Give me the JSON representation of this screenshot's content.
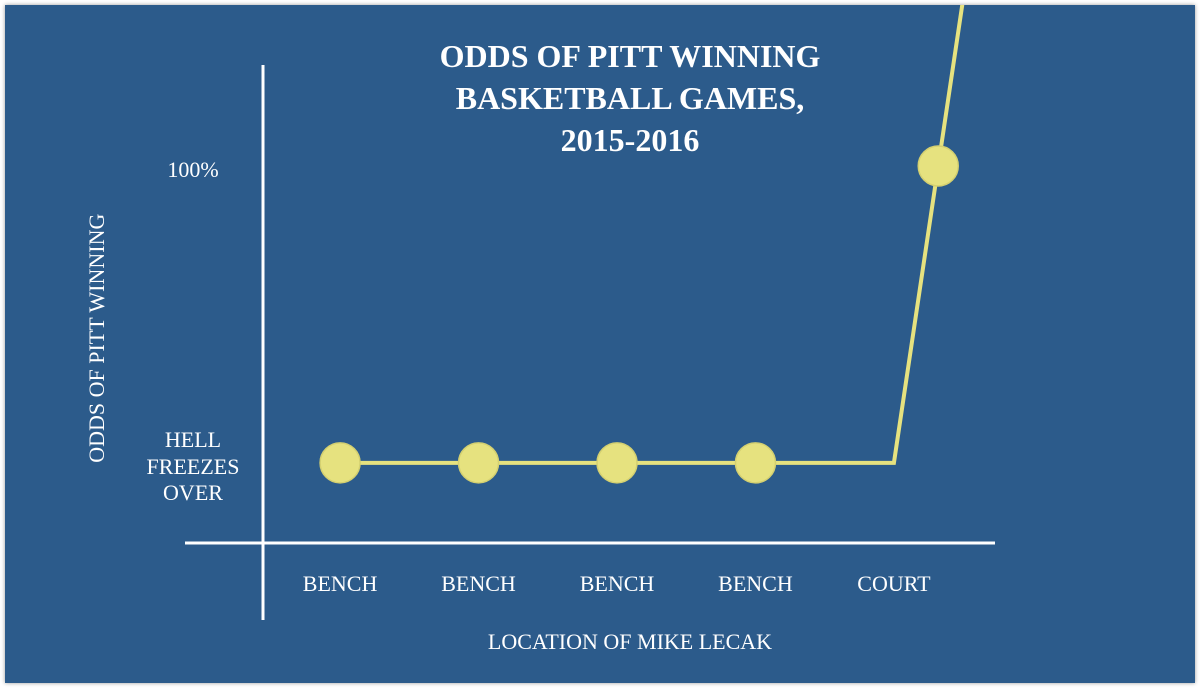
{
  "chart_data": {
    "type": "line",
    "title": "ODDS OF PITT WINNING BASKETBALL GAMES, 2015-2016",
    "x_label": "LOCATION OF MIKE LECAK",
    "y_label": "ODDS OF PITT WINNING",
    "xlim": [
      -1.12,
      4.73
    ],
    "ylim": [
      -27,
      134
    ],
    "xticks": [
      {
        "value": 0,
        "label": "BENCH"
      },
      {
        "value": 1,
        "label": "BENCH"
      },
      {
        "value": 2,
        "label": "BENCH"
      },
      {
        "value": 3,
        "label": "BENCH"
      },
      {
        "value": 4,
        "label": "COURT"
      }
    ],
    "yticks": [
      {
        "value": 0,
        "label": "HELL FREEZES OVER"
      },
      {
        "value": 100,
        "label": "100%"
      }
    ],
    "series": [
      {
        "color": "#e6e27f",
        "x": [
          0,
          1,
          2,
          3,
          4,
          4.32
        ],
        "values": [
          0,
          0,
          0,
          0,
          0,
          100
        ],
        "markers": [
          true,
          true,
          true,
          true,
          false,
          true
        ]
      }
    ]
  }
}
